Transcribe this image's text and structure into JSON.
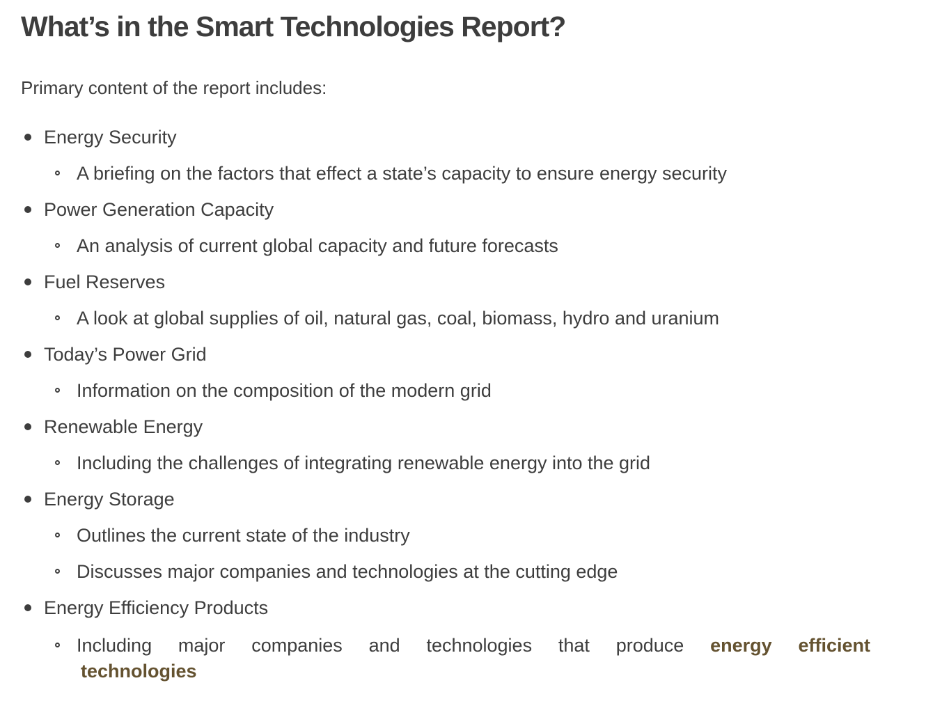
{
  "document": {
    "title": "What’s in the Smart Technologies Report?",
    "intro": "Primary content of the report includes:"
  },
  "colors": {
    "text": "#3d3d3d",
    "highlight": "#645230"
  },
  "list": {
    "items": [
      {
        "label": "Energy Security",
        "subitems": [
          "A briefing on the factors that effect a state’s capacity to ensure energy security"
        ]
      },
      {
        "label": "Power Generation Capacity",
        "subitems": [
          "An analysis of current global capacity and future forecasts"
        ]
      },
      {
        "label": "Fuel Reserves",
        "subitems": [
          "A look at global supplies of oil, natural gas, coal, biomass, hydro and uranium"
        ]
      },
      {
        "label": "Today’s Power Grid",
        "subitems": [
          "Information on the composition of the modern grid"
        ]
      },
      {
        "label": "Renewable Energy",
        "subitems": [
          "Including the challenges of integrating renewable energy into the grid"
        ]
      },
      {
        "label": "Energy Storage",
        "subitems": [
          "Outlines the current state of the industry",
          "Discusses major companies and technologies at the cutting edge"
        ]
      },
      {
        "label": "Energy Efficiency Products",
        "final_subitem": {
          "text": "Including major companies and technologies that produce",
          "highlight_line1": "energy efficient",
          "highlight_line2": "technologies"
        }
      }
    ]
  }
}
